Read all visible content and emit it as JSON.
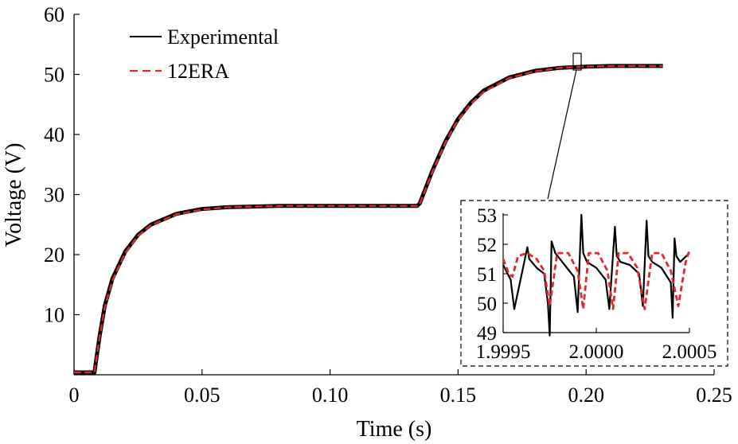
{
  "chart_data": {
    "type": "line",
    "xlabel": "Time (s)",
    "ylabel": "Voltage (V)",
    "xlim": [
      0,
      0.25
    ],
    "ylim": [
      0,
      60
    ],
    "xticks": [
      0,
      0.05,
      0.1,
      0.15,
      0.2,
      0.25
    ],
    "xtick_labels": [
      "0",
      "0.05",
      "0.10",
      "0.15",
      "0.20",
      "0.25"
    ],
    "yticks": [
      10,
      20,
      30,
      40,
      50,
      60
    ],
    "ytick_labels": [
      "10",
      "20",
      "30",
      "40",
      "50",
      "60"
    ],
    "legend_position": "top-left",
    "grid": false,
    "series": [
      {
        "name": "Experimental",
        "color": "#000000",
        "style": "solid",
        "x": [
          0,
          0.008,
          0.0085,
          0.01,
          0.012,
          0.015,
          0.02,
          0.025,
          0.03,
          0.04,
          0.05,
          0.06,
          0.07,
          0.08,
          0.1,
          0.12,
          0.134,
          0.135,
          0.14,
          0.145,
          0.15,
          0.155,
          0.16,
          0.17,
          0.18,
          0.19,
          0.2,
          0.21,
          0.22,
          0.23
        ],
        "y": [
          0.4,
          0.4,
          2.0,
          6.5,
          11.5,
          16.0,
          20.5,
          23.3,
          25.0,
          26.8,
          27.6,
          27.9,
          28.0,
          28.1,
          28.1,
          28.1,
          28.1,
          28.5,
          34.0,
          38.8,
          42.6,
          45.3,
          47.3,
          49.5,
          50.6,
          51.1,
          51.3,
          51.4,
          51.4,
          51.4
        ]
      },
      {
        "name": "12ERA",
        "color": "#e0282e",
        "style": "dashed",
        "x": [
          0,
          0.008,
          0.0085,
          0.01,
          0.012,
          0.015,
          0.02,
          0.025,
          0.03,
          0.04,
          0.05,
          0.06,
          0.07,
          0.08,
          0.1,
          0.12,
          0.134,
          0.135,
          0.14,
          0.145,
          0.15,
          0.155,
          0.16,
          0.17,
          0.18,
          0.19,
          0.2,
          0.21,
          0.22,
          0.23
        ],
        "y": [
          0.4,
          0.4,
          2.0,
          6.3,
          11.2,
          15.7,
          20.3,
          23.1,
          24.9,
          26.7,
          27.5,
          27.9,
          28.0,
          28.1,
          28.1,
          28.1,
          28.1,
          28.4,
          33.8,
          38.6,
          42.4,
          45.1,
          47.1,
          49.4,
          50.5,
          51.1,
          51.3,
          51.4,
          51.4,
          51.4
        ]
      }
    ],
    "inset": {
      "source_marker_x": 0.2,
      "xlim": [
        1.9995,
        2.0005
      ],
      "ylim": [
        49,
        53
      ],
      "xticks": [
        1.9995,
        2.0,
        2.0005
      ],
      "xtick_labels": [
        "1.9995",
        "2.0000",
        "2.0005"
      ],
      "yticks": [
        49,
        50,
        51,
        52,
        53
      ],
      "ytick_labels": [
        "49",
        "50",
        "51",
        "52",
        "53"
      ],
      "series": [
        {
          "name": "Experimental",
          "color": "#000000",
          "x": [
            1.9995,
            1.99954,
            1.99956,
            1.99962,
            1.99963,
            1.99964,
            1.99968,
            1.99972,
            1.99974,
            1.99975,
            1.99976,
            1.99978,
            1.99983,
            1.99988,
            1.9999,
            1.99992,
            1.99993,
            1.99995,
            2.0,
            2.00005,
            2.00007,
            2.0001,
            2.00011,
            2.00013,
            2.00018,
            2.00023,
            2.00025,
            2.00027,
            2.00028,
            2.0003,
            2.00035,
            2.0004,
            2.00041,
            2.00042,
            2.00043,
            2.00045,
            2.0005
          ],
          "y": [
            51.3,
            50.8,
            49.8,
            51.6,
            51.9,
            51.5,
            51.2,
            51.0,
            50.0,
            48.9,
            52.1,
            51.7,
            51.3,
            50.9,
            49.7,
            53.0,
            51.7,
            51.4,
            51.2,
            50.8,
            49.8,
            52.6,
            51.6,
            51.4,
            51.3,
            51.0,
            49.9,
            52.8,
            51.6,
            51.4,
            51.2,
            50.7,
            49.5,
            52.2,
            51.6,
            51.4,
            51.7
          ]
        },
        {
          "name": "12ERA",
          "color": "#e0282e",
          "x": [
            1.9995,
            1.99953,
            1.99955,
            1.99958,
            1.99963,
            1.99968,
            1.99972,
            1.99975,
            1.99979,
            1.99985,
            1.9999,
            1.99993,
            1.99996,
            2.00001,
            2.00006,
            2.00009,
            2.00012,
            2.00017,
            2.00022,
            2.00026,
            2.0003,
            2.00035,
            2.0004,
            2.00044,
            2.00048,
            2.0005
          ],
          "y": [
            51.5,
            51.0,
            50.9,
            51.6,
            51.7,
            51.5,
            51.1,
            49.9,
            51.7,
            51.7,
            51.1,
            49.8,
            51.7,
            51.7,
            51.1,
            49.8,
            51.7,
            51.7,
            51.2,
            49.8,
            51.7,
            51.7,
            51.1,
            49.9,
            51.4,
            51.8
          ]
        }
      ]
    }
  }
}
